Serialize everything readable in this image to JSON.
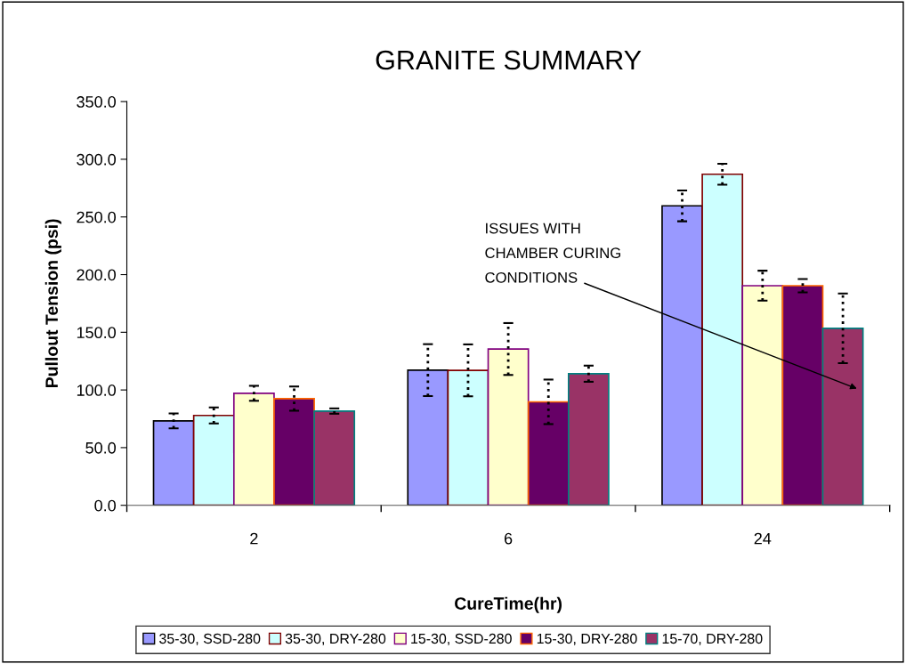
{
  "chart_data": {
    "type": "bar",
    "title": "GRANITE SUMMARY",
    "xlabel": "CureTime(hr)",
    "ylabel": "Pullout Tension (psi)",
    "categories": [
      "2",
      "6",
      "24"
    ],
    "series": [
      {
        "name": "35-30, SSD-280",
        "color": "#9999ff",
        "values": [
          73.2,
          117.2,
          259.6
        ],
        "errors": [
          6.5,
          22.5,
          13.4
        ]
      },
      {
        "name": "35-30, DRY-280",
        "color": "#ccffff",
        "values": [
          77.9,
          117.0,
          287.0
        ],
        "errors": [
          7.0,
          22.5,
          9.1
        ]
      },
      {
        "name": "15-30, SSD-280",
        "color": "#ffffcc",
        "values": [
          97.1,
          135.5,
          190.4
        ],
        "errors": [
          6.5,
          22.5,
          13.0
        ]
      },
      {
        "name": "15-30, DRY-280",
        "color": "#660066",
        "values": [
          92.5,
          89.7,
          190.4
        ],
        "errors": [
          10.5,
          19.3,
          5.8
        ]
      },
      {
        "name": "15-70, DRY-280",
        "color": "#993366",
        "values": [
          81.7,
          114.1,
          153.4
        ],
        "errors": [
          2.3,
          7.0,
          30.2
        ]
      }
    ],
    "ylim": [
      0,
      350
    ],
    "yticks": [
      {
        "value": 0,
        "label": "0.0"
      },
      {
        "value": 50,
        "label": "50.0"
      },
      {
        "value": 100,
        "label": "100.0"
      },
      {
        "value": 150,
        "label": "150.0"
      },
      {
        "value": 200,
        "label": "200.0"
      },
      {
        "value": 250,
        "label": "250.0"
      },
      {
        "value": 300,
        "label": "300.0"
      },
      {
        "value": 350,
        "label": "350.0"
      }
    ],
    "annotations": [
      "ISSUES WITH\nCHAMBER CURING\nCONDITIONS"
    ],
    "grid": false,
    "legend": "bottom"
  }
}
